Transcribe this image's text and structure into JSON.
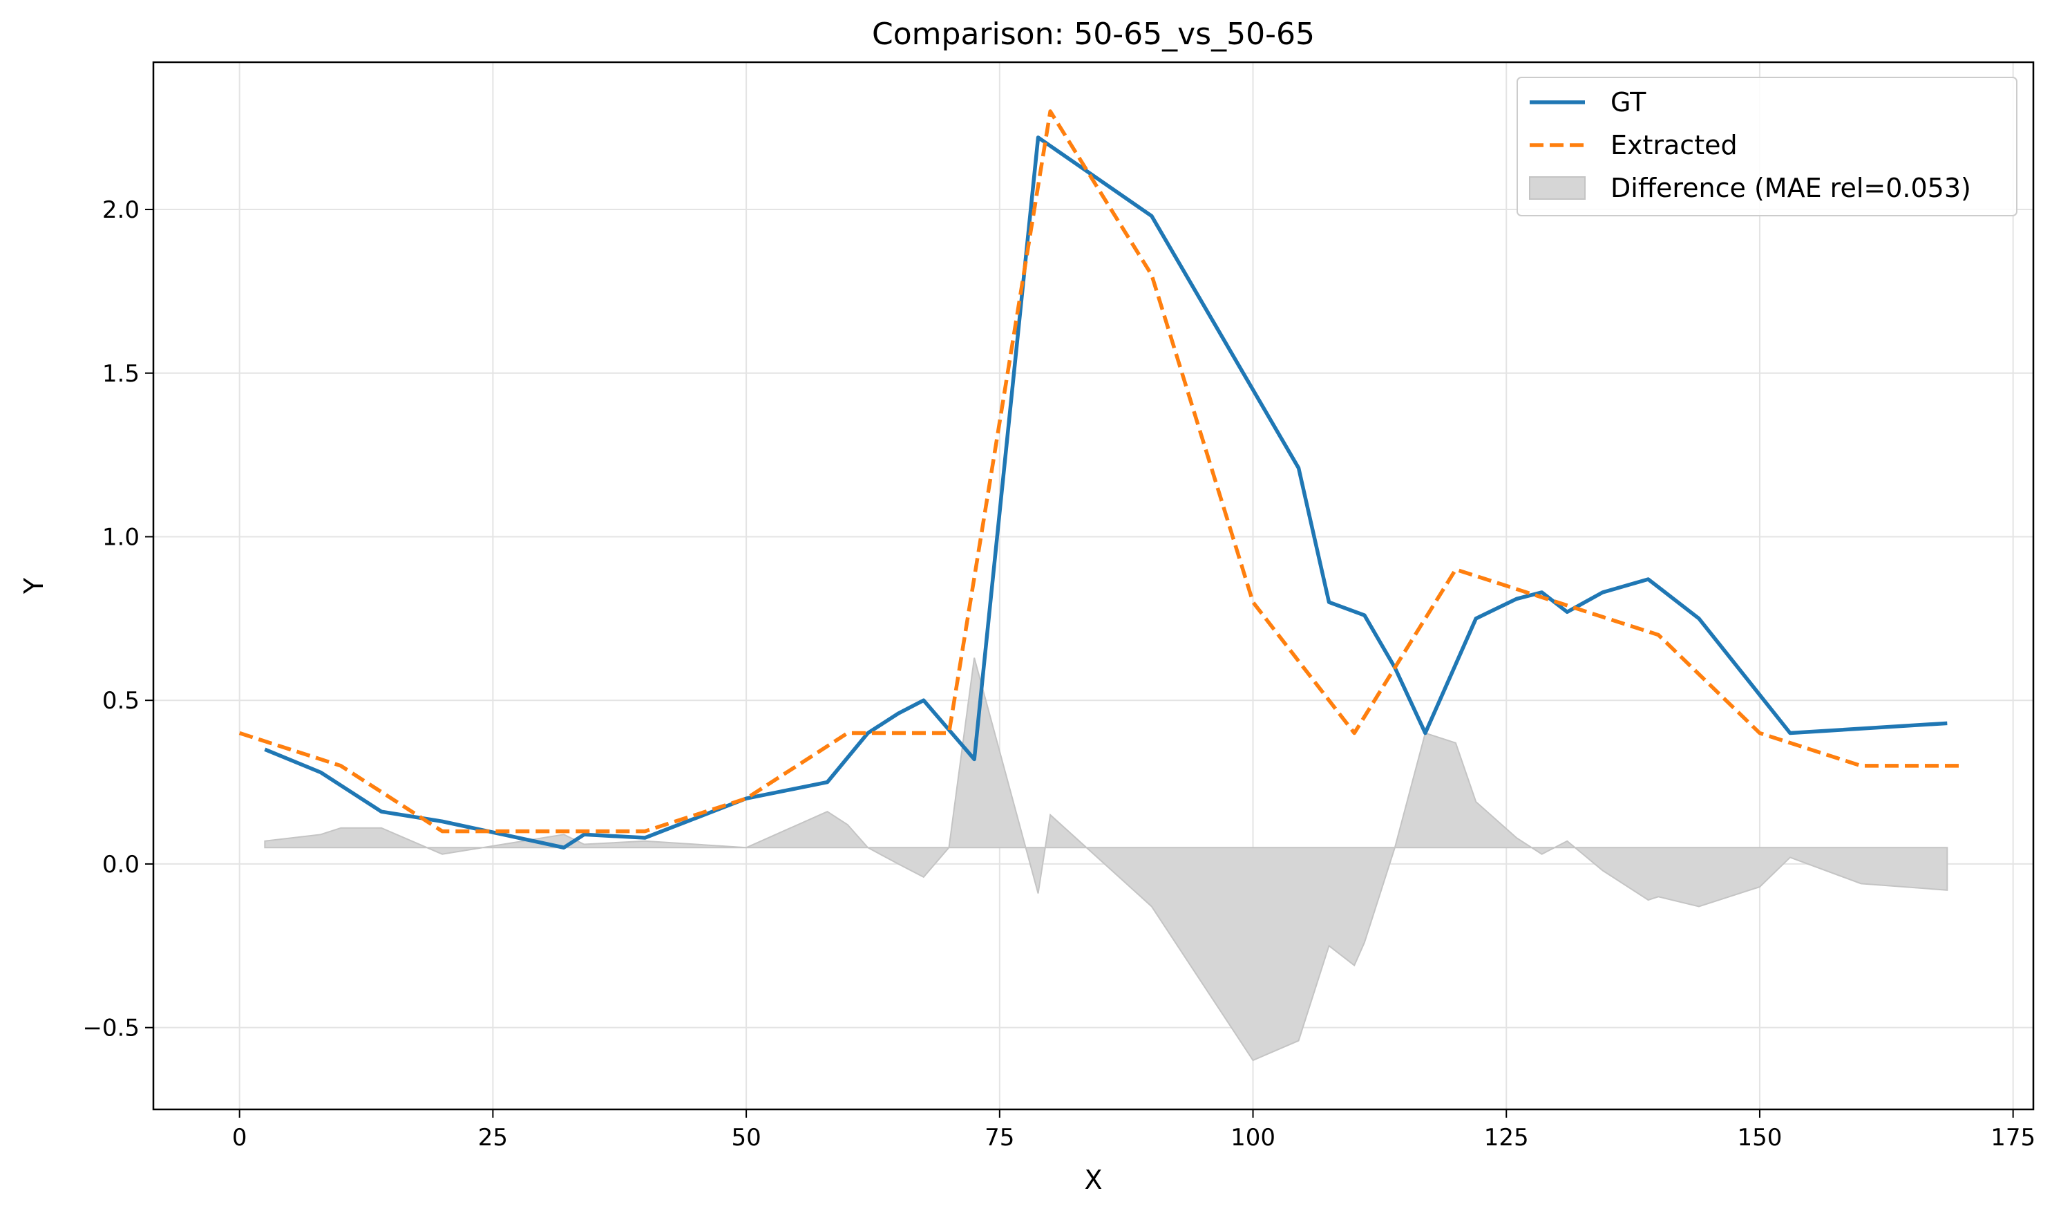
{
  "chart_data": {
    "type": "line",
    "title": "Comparison: 50-65_vs_50-65",
    "xlabel": "X",
    "ylabel": "Y",
    "xlim": [
      -8.5,
      177
    ],
    "ylim": [
      -0.75,
      2.45
    ],
    "xticks": [
      0,
      25,
      50,
      75,
      100,
      125,
      150,
      175
    ],
    "yticks": [
      -0.5,
      0.0,
      0.5,
      1.0,
      1.5,
      2.0
    ],
    "xtick_labels": [
      "0",
      "25",
      "50",
      "75",
      "100",
      "125",
      "150",
      "175"
    ],
    "ytick_labels": [
      "−0.5",
      "0.0",
      "0.5",
      "1.0",
      "1.5",
      "2.0"
    ],
    "grid": true,
    "legend_position": "top-right",
    "series": [
      {
        "name": "GT",
        "style": "solid",
        "color": "#1f77b4",
        "x": [
          2.5,
          8,
          14,
          20,
          26,
          32,
          34,
          40,
          50,
          58,
          62,
          65,
          67.5,
          72.5,
          78.8,
          90,
          104.5,
          107.5,
          111,
          114,
          117,
          122,
          126,
          128.5,
          131,
          134.5,
          139,
          144,
          153,
          168.5
        ],
        "y": [
          0.35,
          0.28,
          0.16,
          0.13,
          0.09,
          0.05,
          0.09,
          0.08,
          0.2,
          0.25,
          0.4,
          0.46,
          0.5,
          0.32,
          2.22,
          1.98,
          1.21,
          0.8,
          0.76,
          0.6,
          0.4,
          0.75,
          0.81,
          0.83,
          0.77,
          0.83,
          0.87,
          0.75,
          0.4,
          0.43
        ]
      },
      {
        "name": "Extracted",
        "style": "dashed",
        "color": "#ff7f0e",
        "x": [
          0,
          10,
          20,
          30,
          40,
          50,
          60,
          70,
          80,
          90,
          100,
          110,
          120,
          130,
          140,
          150,
          160,
          170
        ],
        "y": [
          0.4,
          0.3,
          0.1,
          0.1,
          0.1,
          0.2,
          0.4,
          0.4,
          2.3,
          1.8,
          0.8,
          0.4,
          0.9,
          0.8,
          0.7,
          0.4,
          0.3,
          0.3
        ]
      },
      {
        "name": "Difference (MAE rel=0.053)",
        "type": "area",
        "color": "#d6d6d6",
        "baseline": 0.05,
        "x": [
          2.5,
          8,
          10,
          14,
          20,
          26,
          32,
          34,
          40,
          50,
          58,
          60,
          62,
          65,
          67.5,
          70,
          72.5,
          78.8,
          80,
          90,
          100,
          104.5,
          107.5,
          110,
          111,
          114,
          117,
          120,
          122,
          126,
          128.5,
          131,
          134.5,
          139,
          140,
          144,
          150,
          153,
          160,
          168.5
        ],
        "y": [
          0.07,
          0.09,
          0.11,
          0.11,
          0.03,
          0.06,
          0.09,
          0.06,
          0.07,
          0.05,
          0.16,
          0.12,
          0.05,
          0,
          -0.04,
          0.05,
          0.63,
          -0.09,
          0.15,
          -0.13,
          -0.6,
          -0.54,
          -0.25,
          -0.31,
          -0.24,
          0.05,
          0.4,
          0.37,
          0.19,
          0.08,
          0.03,
          0.07,
          -0.02,
          -0.11,
          -0.1,
          -0.13,
          -0.07,
          0.02,
          -0.06,
          -0.08
        ]
      }
    ]
  }
}
